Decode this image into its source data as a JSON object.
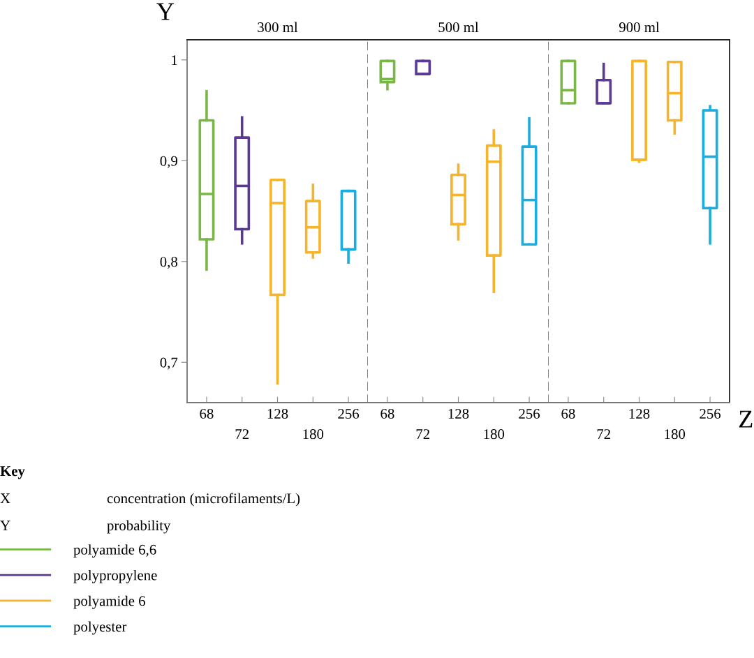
{
  "chart_data": [
    {
      "type": "box",
      "title": "300 ml",
      "ylabel": "Y",
      "categories": [
        "68",
        "72",
        "128",
        "180",
        "256"
      ],
      "ylim": [
        0.66,
        1.02
      ],
      "yticks": [
        {
          "value": 0.7,
          "label": "0,7"
        },
        {
          "value": 0.8,
          "label": "0,8"
        },
        {
          "value": 0.9,
          "label": "0,9"
        },
        {
          "value": 1,
          "label": "1"
        }
      ],
      "legend": "bottom",
      "grid": false,
      "annotations": [
        "Key",
        "X",
        "concentration (microfilaments/L)",
        "Y",
        "probability"
      ],
      "series": [
        {
          "name": "polyamide 6,6",
          "color": "#7ab648",
          "boxes": [
            {
              "low": 0.792,
              "q1": 0.822,
              "median": 0.867,
              "q3": 0.94,
              "high": 0.969
            },
            null,
            null,
            null,
            null
          ]
        },
        {
          "name": "polypropylene",
          "color": "#5b3a96",
          "boxes": [
            null,
            {
              "low": 0.818,
              "q1": 0.832,
              "median": 0.875,
              "q3": 0.923,
              "high": 0.943
            },
            null,
            null,
            null
          ]
        },
        {
          "name": "polyamide 6",
          "color": "#f6b42c",
          "boxes": [
            null,
            null,
            {
              "low": 0.679,
              "q1": 0.767,
              "median": 0.858,
              "q3": 0.881,
              "high": 0.881
            },
            {
              "low": 0.804,
              "q1": 0.809,
              "median": 0.834,
              "q3": 0.86,
              "high": 0.876
            },
            null
          ]
        },
        {
          "name": "polyester",
          "color": "#1aaee0",
          "boxes": [
            null,
            null,
            null,
            null,
            {
              "low": 0.799,
              "q1": 0.812,
              "median": 0.812,
              "q3": 0.87,
              "high": 0.87
            }
          ]
        }
      ]
    },
    {
      "type": "box",
      "title": "500 ml",
      "categories": [
        "68",
        "72",
        "128",
        "180",
        "256"
      ],
      "ylim": [
        0.66,
        1.02
      ],
      "tick_labels": "x",
      "grid": false,
      "series": [
        {
          "color": "#7ab648",
          "boxes": [
            {
              "low": 0.971,
              "q1": 0.978,
              "median": 0.981,
              "q3": 0.999,
              "high": 0.999
            },
            null,
            null,
            null,
            null
          ]
        },
        {
          "color": "#5b3a96",
          "boxes": [
            null,
            {
              "low": 0.986,
              "q1": 0.986,
              "median": 0.986,
              "q3": 0.999,
              "high": 0.999
            },
            null,
            null,
            null
          ]
        },
        {
          "color": "#f6b42c",
          "boxes": [
            null,
            null,
            {
              "low": 0.822,
              "q1": 0.837,
              "median": 0.866,
              "q3": 0.886,
              "high": 0.896
            },
            {
              "low": 0.77,
              "q1": 0.806,
              "median": 0.899,
              "q3": 0.915,
              "high": 0.93
            },
            null
          ]
        },
        {
          "color": "#1aaee0",
          "boxes": [
            null,
            null,
            null,
            null,
            {
              "low": 0.817,
              "q1": 0.817,
              "median": 0.861,
              "q3": 0.914,
              "high": 0.942
            }
          ]
        }
      ]
    },
    {
      "type": "box",
      "title": "900 ml",
      "xlabel": "Z",
      "categories": [
        "68",
        "72",
        "128",
        "180",
        "256"
      ],
      "ylim": [
        0.66,
        1.02
      ],
      "tick_labels": "x",
      "grid": false,
      "series": [
        {
          "color": "#7ab648",
          "boxes": [
            {
              "low": 0.957,
              "q1": 0.957,
              "median": 0.97,
              "q3": 0.999,
              "high": 0.999
            },
            null,
            null,
            null,
            null
          ]
        },
        {
          "color": "#5b3a96",
          "boxes": [
            null,
            {
              "low": 0.957,
              "q1": 0.957,
              "median": 0.957,
              "q3": 0.98,
              "high": 0.996
            },
            null,
            null,
            null
          ]
        },
        {
          "color": "#f6b42c",
          "boxes": [
            null,
            null,
            {
              "low": 0.899,
              "q1": 0.901,
              "median": 0.901,
              "q3": 0.999,
              "high": 0.999
            },
            {
              "low": 0.927,
              "q1": 0.94,
              "median": 0.967,
              "q3": 0.998,
              "high": 0.998
            },
            null
          ]
        },
        {
          "color": "#1aaee0",
          "boxes": [
            null,
            null,
            null,
            null,
            {
              "low": 0.818,
              "q1": 0.853,
              "median": 0.904,
              "q3": 0.95,
              "high": 0.954
            }
          ]
        }
      ]
    }
  ]
}
